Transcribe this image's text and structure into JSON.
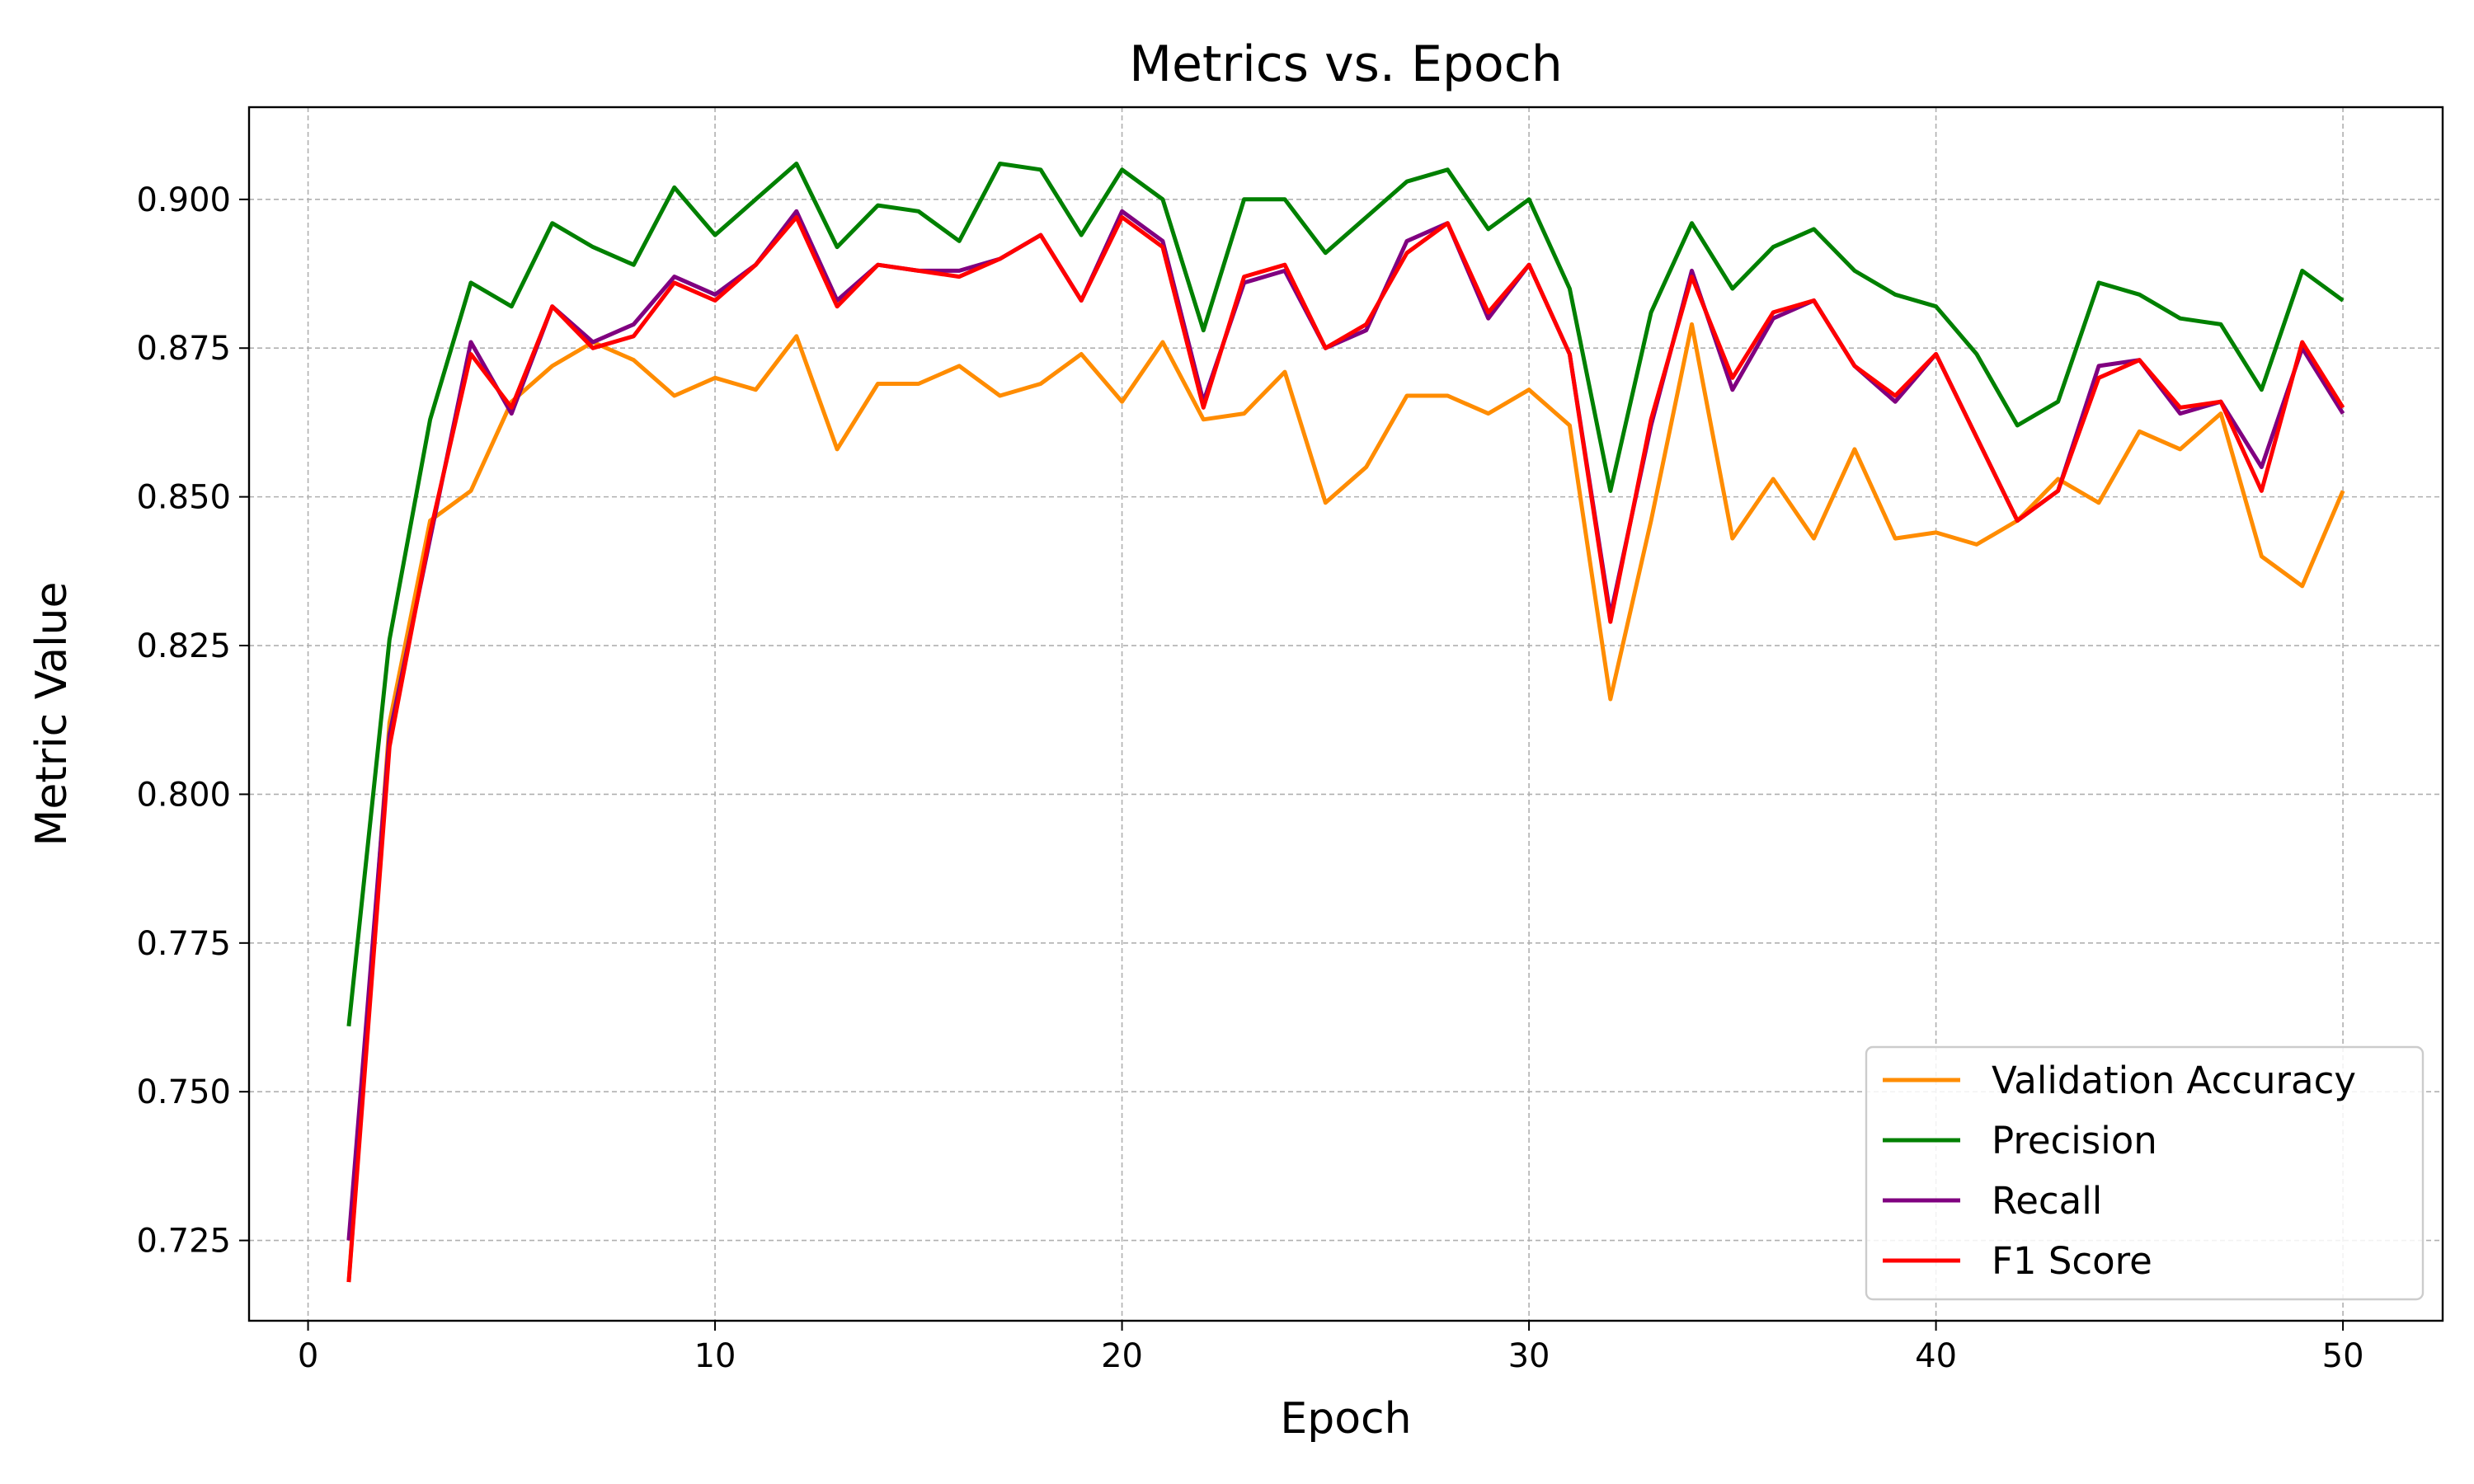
{
  "chart_data": {
    "type": "line",
    "title": "Metrics vs. Epoch",
    "xlabel": "Epoch",
    "ylabel": "Metric Value",
    "xlim": [
      -1.45,
      52.45
    ],
    "ylim": [
      0.7115,
      0.9155
    ],
    "xticks": [
      0,
      10,
      20,
      30,
      40,
      50
    ],
    "yticks": [
      0.725,
      0.75,
      0.775,
      0.8,
      0.825,
      0.85,
      0.875,
      0.9
    ],
    "ytick_labels": [
      "0.725",
      "0.750",
      "0.775",
      "0.800",
      "0.825",
      "0.850",
      "0.875",
      "0.900"
    ],
    "grid": true,
    "legend_position": "lower right",
    "x": [
      1,
      2,
      3,
      4,
      5,
      6,
      7,
      8,
      9,
      10,
      11,
      12,
      13,
      14,
      15,
      16,
      17,
      18,
      19,
      20,
      21,
      22,
      23,
      24,
      25,
      26,
      27,
      28,
      29,
      30,
      31,
      32,
      33,
      34,
      35,
      36,
      37,
      38,
      39,
      40,
      41,
      42,
      43,
      44,
      45,
      46,
      47,
      48,
      49,
      50
    ],
    "series": [
      {
        "name": "Validation Accuracy",
        "color": "#ff8c00",
        "values": [
          0.718,
          0.812,
          0.846,
          0.851,
          0.866,
          0.872,
          0.876,
          0.873,
          0.867,
          0.87,
          0.868,
          0.877,
          0.858,
          0.869,
          0.869,
          0.872,
          0.867,
          0.869,
          0.874,
          0.866,
          0.876,
          0.863,
          0.864,
          0.871,
          0.849,
          0.855,
          0.867,
          0.867,
          0.864,
          0.868,
          0.862,
          0.816,
          0.846,
          0.879,
          0.843,
          0.853,
          0.843,
          0.858,
          0.843,
          0.844,
          0.842,
          0.846,
          0.853,
          0.849,
          0.861,
          0.858,
          0.864,
          0.84,
          0.835,
          0.851
        ]
      },
      {
        "name": "Precision",
        "color": "#008000",
        "values": [
          0.761,
          0.826,
          0.863,
          0.886,
          0.882,
          0.896,
          0.892,
          0.889,
          0.902,
          0.894,
          0.9,
          0.906,
          0.892,
          0.899,
          0.898,
          0.893,
          0.906,
          0.905,
          0.894,
          0.905,
          0.9,
          0.878,
          0.9,
          0.9,
          0.891,
          0.897,
          0.903,
          0.905,
          0.895,
          0.9,
          0.885,
          0.851,
          0.881,
          0.896,
          0.885,
          0.892,
          0.895,
          0.888,
          0.884,
          0.882,
          0.874,
          0.862,
          0.866,
          0.886,
          0.884,
          0.88,
          0.879,
          0.868,
          0.888,
          0.883
        ]
      },
      {
        "name": "Recall",
        "color": "#800080",
        "values": [
          0.725,
          0.81,
          0.843,
          0.876,
          0.864,
          0.882,
          0.876,
          0.879,
          0.887,
          0.884,
          0.889,
          0.898,
          0.883,
          0.889,
          0.888,
          0.888,
          0.89,
          0.894,
          0.883,
          0.898,
          0.893,
          0.866,
          0.886,
          0.888,
          0.875,
          0.878,
          0.893,
          0.896,
          0.88,
          0.889,
          0.874,
          0.83,
          0.862,
          0.888,
          0.868,
          0.88,
          0.883,
          0.872,
          0.866,
          0.874,
          0.86,
          0.846,
          0.851,
          0.872,
          0.873,
          0.864,
          0.866,
          0.855,
          0.875,
          0.864
        ]
      },
      {
        "name": "F1 Score",
        "color": "#ff0000",
        "values": [
          0.718,
          0.808,
          0.844,
          0.874,
          0.865,
          0.882,
          0.875,
          0.877,
          0.886,
          0.883,
          0.889,
          0.897,
          0.882,
          0.889,
          0.888,
          0.887,
          0.89,
          0.894,
          0.883,
          0.897,
          0.892,
          0.865,
          0.887,
          0.889,
          0.875,
          0.879,
          0.891,
          0.896,
          0.881,
          0.889,
          0.874,
          0.829,
          0.863,
          0.887,
          0.87,
          0.881,
          0.883,
          0.872,
          0.867,
          0.874,
          0.86,
          0.846,
          0.851,
          0.87,
          0.873,
          0.865,
          0.866,
          0.851,
          0.876,
          0.865
        ]
      }
    ]
  }
}
